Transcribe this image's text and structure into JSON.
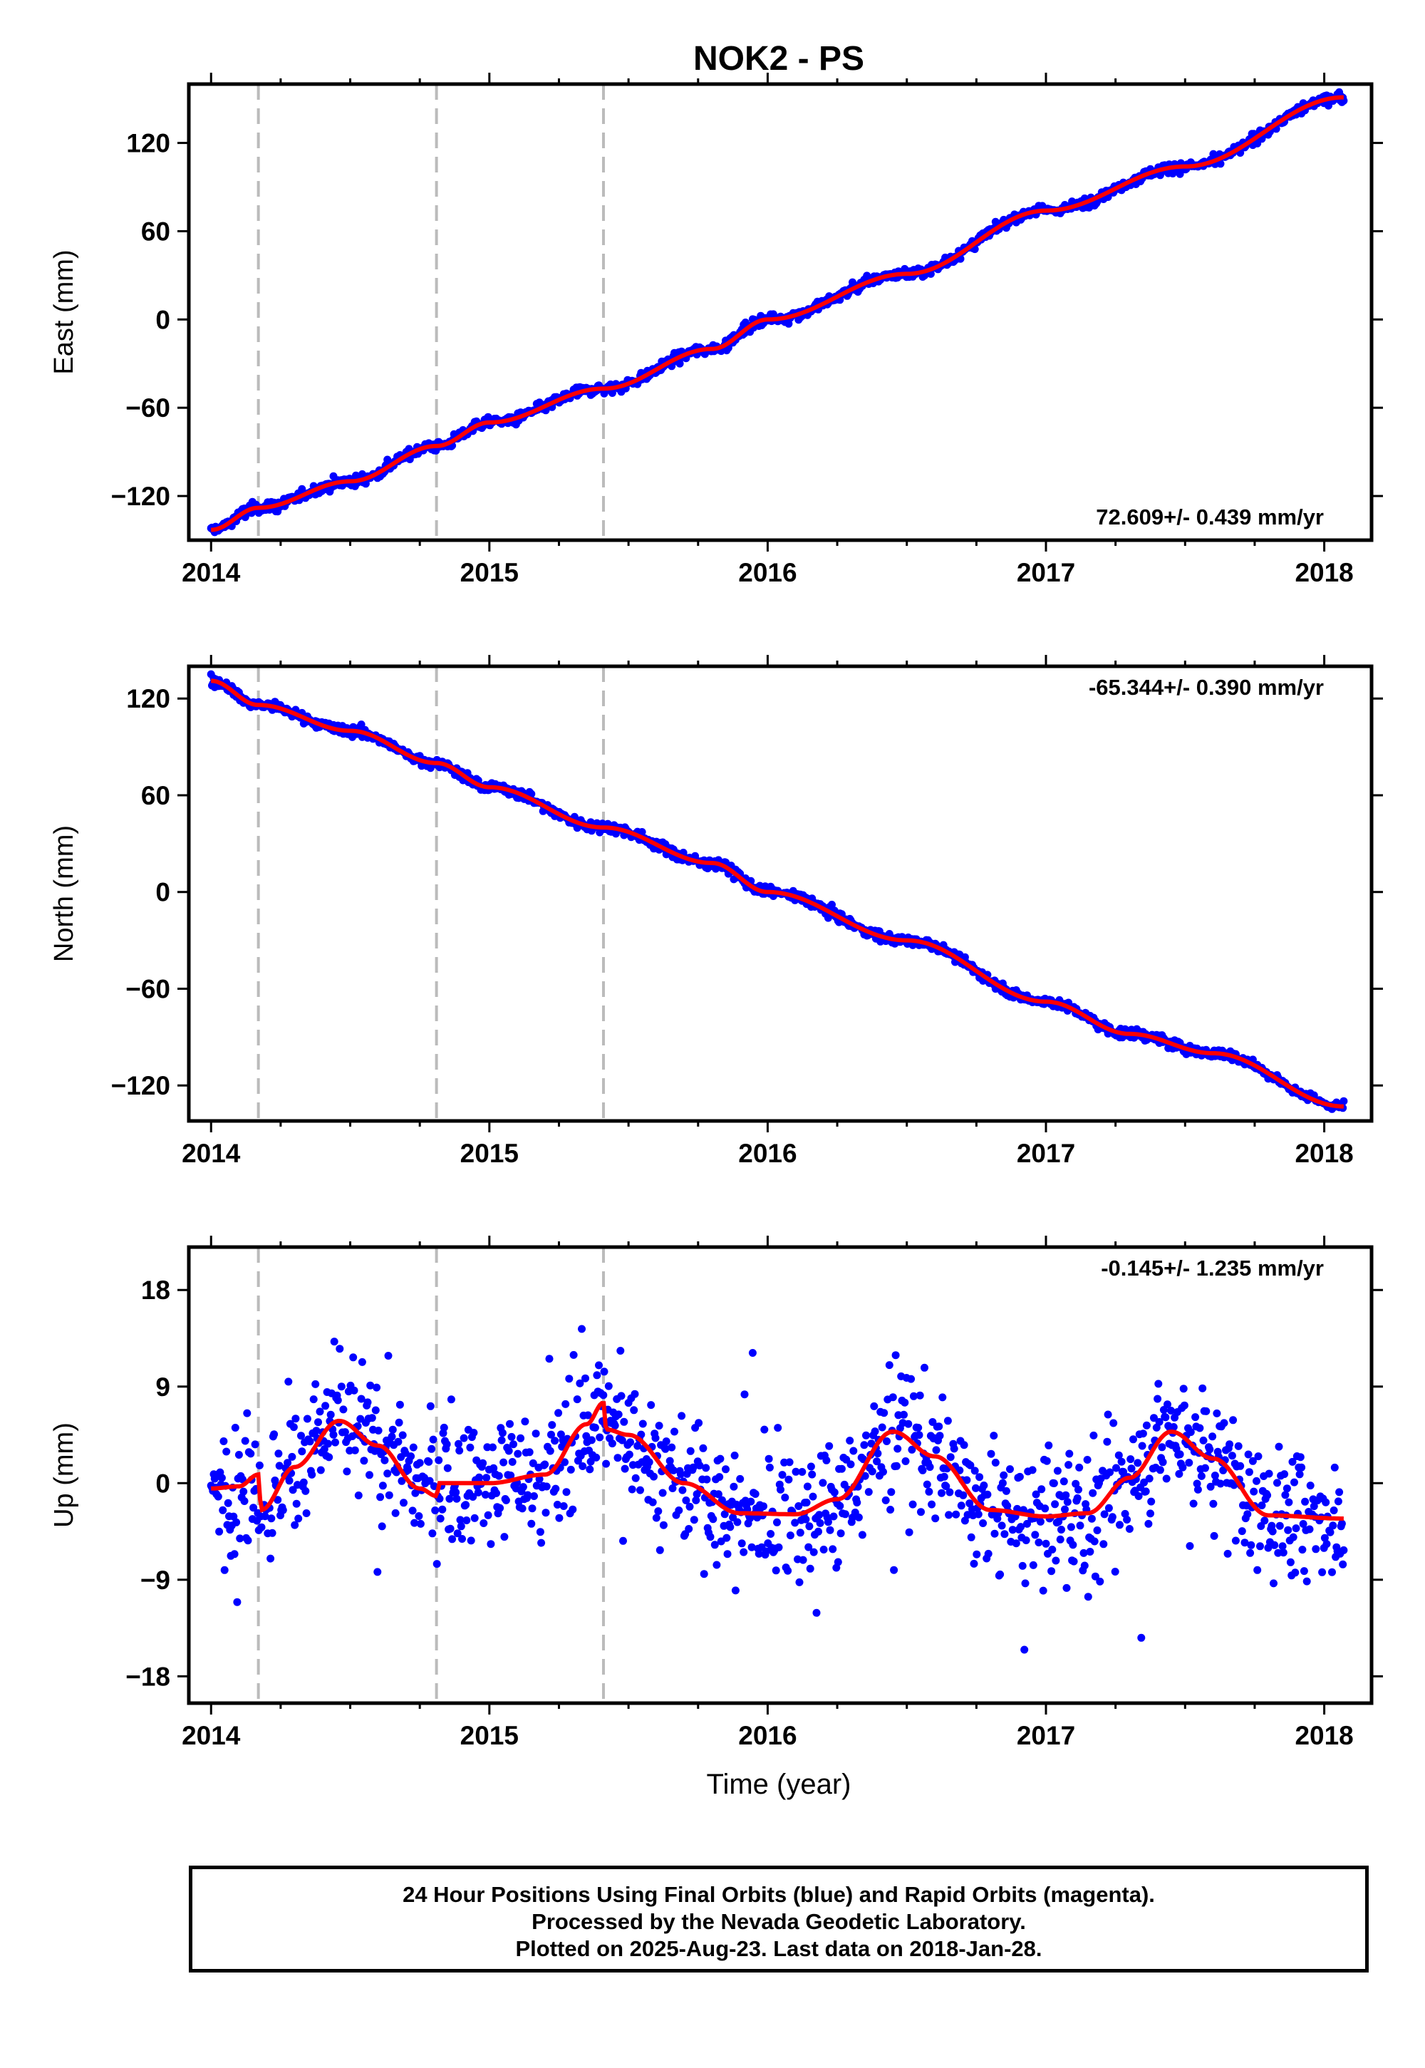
{
  "chart_data": {
    "title": "NOK2 - PS",
    "xlabel": "Time (year)",
    "x_ticks": [
      "2014",
      "2015",
      "2016",
      "2017",
      "2018"
    ],
    "xlim": [
      2013.92,
      2018.17
    ],
    "vertical_dashed_lines": [
      2014.17,
      2014.81,
      2015.41
    ],
    "colors": {
      "points": "#0000ff",
      "fit": "#ff0000",
      "dashed": "#bbbbbb"
    },
    "panels": [
      {
        "type": "scatter",
        "ylabel": "East (mm)",
        "ylim": [
          -150,
          160
        ],
        "y_ticks": [
          120,
          60,
          0,
          -60,
          -120
        ],
        "rate_text": "72.609+/- 0.439 mm/yr",
        "rate_position": "bottom-right",
        "fit": {
          "x": [
            2014.0,
            2014.17,
            2014.5,
            2014.81,
            2015.0,
            2015.41,
            2015.8,
            2016.0,
            2016.5,
            2017.0,
            2017.5,
            2018.07
          ],
          "y": [
            -143,
            -128,
            -110,
            -86,
            -70,
            -47,
            -20,
            0,
            31,
            74,
            104,
            151
          ]
        },
        "points_noise_mm": 2.5,
        "points_count": 1260
      },
      {
        "type": "scatter",
        "ylabel": "North (mm)",
        "ylim": [
          -142,
          140
        ],
        "y_ticks": [
          120,
          60,
          0,
          -60,
          -120
        ],
        "rate_text": "-65.344+/- 0.390 mm/yr",
        "rate_position": "top-right",
        "fit": {
          "x": [
            2014.0,
            2014.17,
            2014.5,
            2014.81,
            2015.0,
            2015.41,
            2015.8,
            2016.0,
            2016.5,
            2017.0,
            2017.3,
            2017.6,
            2018.07
          ],
          "y": [
            131,
            116,
            100,
            80,
            65,
            40,
            18,
            0,
            -30,
            -68,
            -88,
            -100,
            -133
          ]
        },
        "points_noise_mm": 2.2,
        "points_count": 1260
      },
      {
        "type": "scatter",
        "ylabel": "Up (mm)",
        "ylim": [
          -20.5,
          22
        ],
        "y_ticks": [
          18,
          9,
          0,
          -9,
          -18
        ],
        "rate_text": "-0.145+/- 1.235 mm/yr",
        "rate_position": "top-right",
        "fit": {
          "x": [
            2014.0,
            2014.1,
            2014.17,
            2014.18,
            2014.3,
            2014.46,
            2014.6,
            2014.75,
            2014.81,
            2014.82,
            2015.0,
            2015.2,
            2015.35,
            2015.41,
            2015.42,
            2015.5,
            2015.7,
            2015.9,
            2016.1,
            2016.25,
            2016.45,
            2016.6,
            2016.8,
            2017.0,
            2017.15,
            2017.3,
            2017.45,
            2017.6,
            2017.8,
            2018.07
          ],
          "y": [
            -0.5,
            -0.3,
            0.8,
            -2.5,
            1.5,
            5.8,
            3.5,
            -0.5,
            -1.2,
            0,
            0,
            0.8,
            5.5,
            7.5,
            5,
            4.5,
            0,
            -2.8,
            -2.9,
            -1.5,
            4.8,
            2.5,
            -2.5,
            -3.1,
            -2.8,
            0.5,
            4.8,
            2.3,
            -3,
            -3.3
          ]
        },
        "points_noise_mm": 4.2,
        "points_count": 1260
      }
    ]
  },
  "footer": {
    "line1": "24 Hour Positions Using Final Orbits (blue) and Rapid Orbits (magenta).",
    "line2": "Processed by the Nevada Geodetic Laboratory.",
    "line3": "Plotted on 2025-Aug-23. Last data on 2018-Jan-28."
  }
}
